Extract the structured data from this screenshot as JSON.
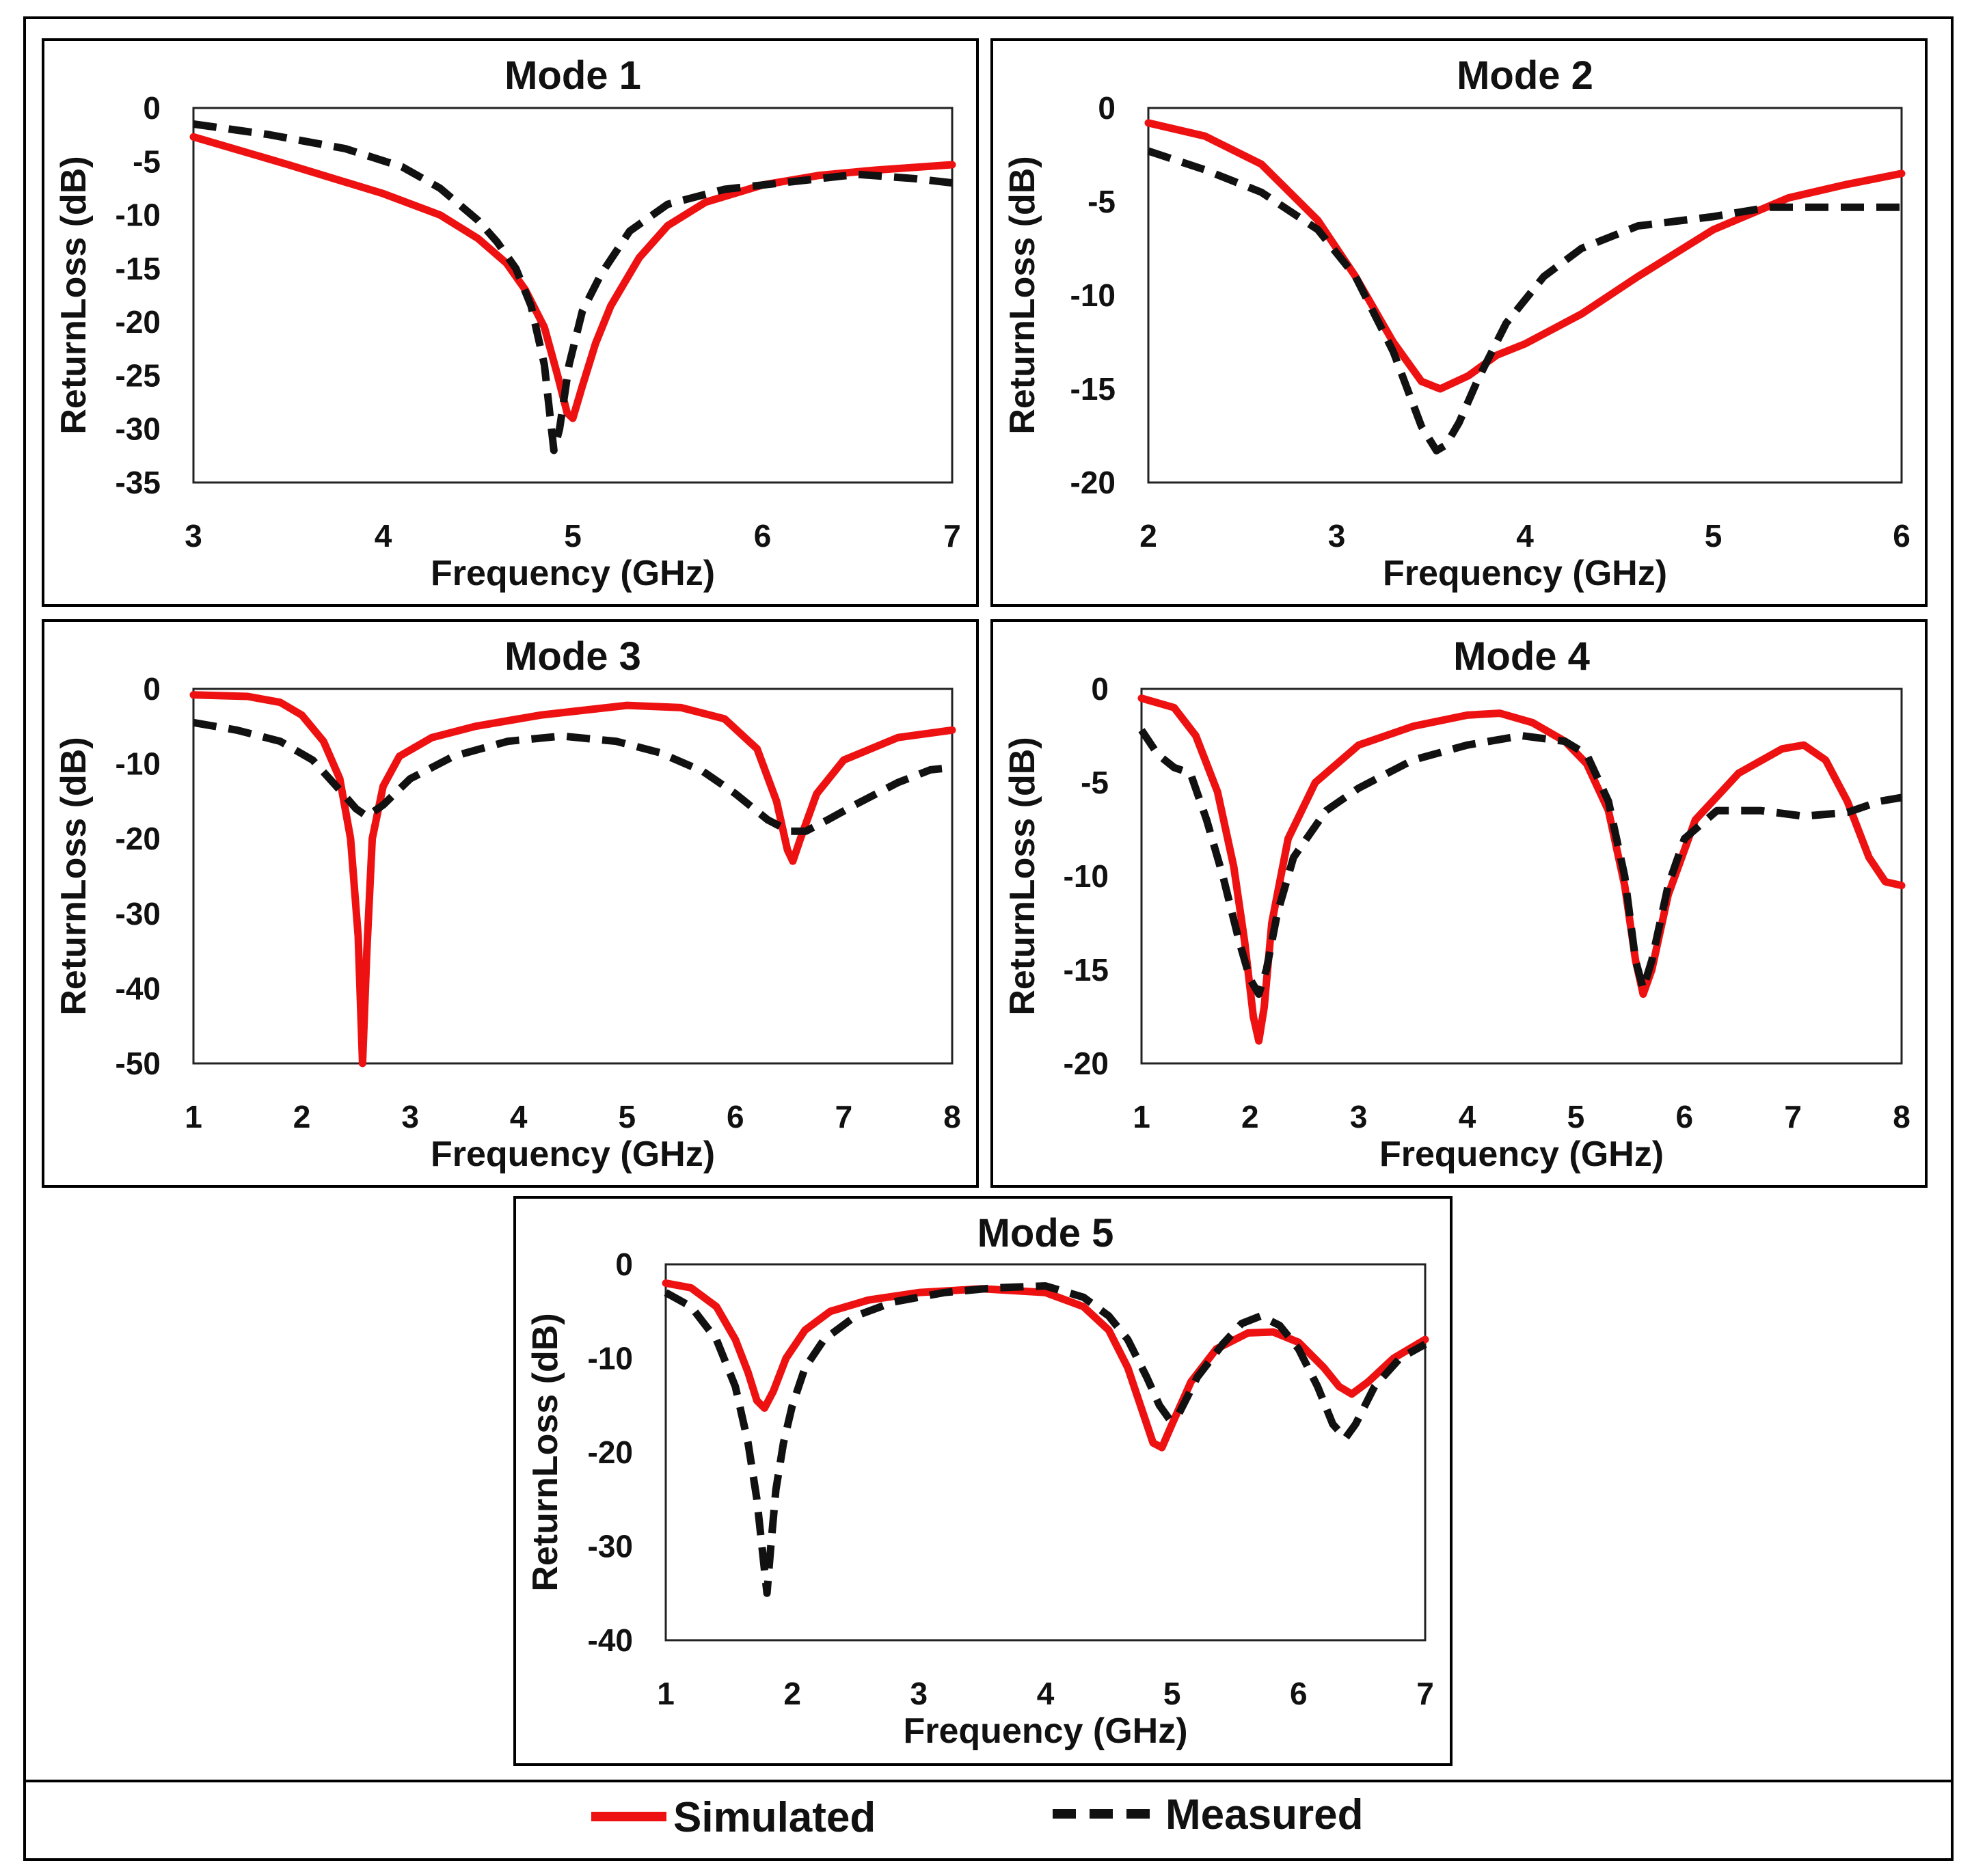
{
  "legend": {
    "simulated": "Simulated",
    "measured": "Measured"
  },
  "colors": {
    "simulated": "#ee1111",
    "measured": "#111111"
  },
  "chart_data": [
    {
      "type": "line",
      "title": "Mode 1",
      "xlabel": "Frequency (GHz)",
      "ylabel": "ReturnLoss (dB)",
      "xlim": [
        3,
        7
      ],
      "ylim": [
        -35,
        0
      ],
      "xticks": [
        3,
        4,
        5,
        6,
        7
      ],
      "yticks": [
        0,
        -5,
        -10,
        -15,
        -20,
        -25,
        -30,
        -35
      ],
      "grid": false,
      "series": [
        {
          "name": "Simulated",
          "x": [
            3,
            3.5,
            4,
            4.3,
            4.5,
            4.65,
            4.75,
            4.85,
            4.92,
            4.97,
            5.0,
            5.05,
            5.12,
            5.2,
            5.35,
            5.5,
            5.7,
            6.0,
            6.3,
            6.6,
            7.0
          ],
          "y": [
            -2.7,
            -5.3,
            -8.0,
            -10.0,
            -12.2,
            -14.5,
            -17.0,
            -20.5,
            -25.0,
            -28.5,
            -29.0,
            -26.0,
            -22.0,
            -18.5,
            -14.0,
            -11.0,
            -8.8,
            -7.2,
            -6.3,
            -5.8,
            -5.3
          ]
        },
        {
          "name": "Measured",
          "x": [
            3,
            3.4,
            3.8,
            4.1,
            4.3,
            4.5,
            4.6,
            4.7,
            4.78,
            4.85,
            4.9,
            4.93,
            4.98,
            5.05,
            5.15,
            5.3,
            5.5,
            5.8,
            6.1,
            6.5,
            6.8,
            7.0
          ],
          "y": [
            -1.5,
            -2.5,
            -3.8,
            -5.5,
            -7.5,
            -10.5,
            -12.5,
            -15.0,
            -18.5,
            -24.0,
            -32.0,
            -30.0,
            -24.0,
            -19.0,
            -15.5,
            -11.5,
            -9.0,
            -7.6,
            -7.0,
            -6.2,
            -6.6,
            -7.0
          ]
        }
      ]
    },
    {
      "type": "line",
      "title": "Mode 2",
      "xlabel": "Frequency (GHz)",
      "ylabel": "ReturnLoss (dB)",
      "xlim": [
        2,
        6
      ],
      "ylim": [
        -20,
        0
      ],
      "xticks": [
        2,
        3,
        4,
        5,
        6
      ],
      "yticks": [
        0,
        -5,
        -10,
        -15,
        -20
      ],
      "grid": false,
      "series": [
        {
          "name": "Simulated",
          "x": [
            2,
            2.3,
            2.6,
            2.9,
            3.1,
            3.3,
            3.45,
            3.55,
            3.7,
            3.85,
            4.0,
            4.3,
            4.6,
            5.0,
            5.4,
            5.7,
            6.0
          ],
          "y": [
            -0.8,
            -1.5,
            -3.0,
            -6.0,
            -9.0,
            -12.5,
            -14.6,
            -15.0,
            -14.3,
            -13.2,
            -12.6,
            -11.0,
            -9.0,
            -6.5,
            -4.8,
            -4.1,
            -3.5
          ]
        },
        {
          "name": "Measured",
          "x": [
            2,
            2.3,
            2.6,
            2.9,
            3.1,
            3.3,
            3.45,
            3.53,
            3.58,
            3.65,
            3.75,
            3.9,
            4.1,
            4.3,
            4.6,
            5.0,
            5.3,
            5.6,
            6.0
          ],
          "y": [
            -2.3,
            -3.3,
            -4.5,
            -6.5,
            -9.0,
            -13.0,
            -17.0,
            -18.3,
            -18.0,
            -16.8,
            -14.5,
            -11.5,
            -9.0,
            -7.5,
            -6.3,
            -5.8,
            -5.3,
            -5.3,
            -5.3
          ]
        }
      ]
    },
    {
      "type": "line",
      "title": "Mode 3",
      "xlabel": "Frequency (GHz)",
      "ylabel": "ReturnLoss (dB)",
      "xlim": [
        1,
        8
      ],
      "ylim": [
        -50,
        0
      ],
      "xticks": [
        1,
        2,
        3,
        4,
        5,
        6,
        7,
        8
      ],
      "yticks": [
        0,
        -10,
        -20,
        -30,
        -40,
        -50
      ],
      "grid": false,
      "series": [
        {
          "name": "Simulated",
          "x": [
            1,
            1.5,
            1.8,
            2.0,
            2.2,
            2.35,
            2.45,
            2.52,
            2.56,
            2.6,
            2.65,
            2.75,
            2.9,
            3.2,
            3.6,
            4.2,
            5.0,
            5.5,
            5.9,
            6.2,
            6.38,
            6.48,
            6.53,
            6.6,
            6.75,
            7.0,
            7.5,
            8.0
          ],
          "y": [
            -0.8,
            -1.0,
            -1.8,
            -3.5,
            -7.0,
            -12.0,
            -20.0,
            -33.0,
            -50.0,
            -35.0,
            -20.0,
            -13.0,
            -9.0,
            -6.5,
            -5.0,
            -3.5,
            -2.2,
            -2.5,
            -4.0,
            -8.0,
            -15.0,
            -21.5,
            -23.0,
            -20.0,
            -14.0,
            -9.5,
            -6.5,
            -5.5
          ]
        },
        {
          "name": "Measured",
          "x": [
            1,
            1.4,
            1.8,
            2.1,
            2.35,
            2.5,
            2.6,
            2.75,
            3.0,
            3.4,
            3.9,
            4.4,
            4.9,
            5.3,
            5.7,
            6.0,
            6.3,
            6.5,
            6.65,
            6.85,
            7.1,
            7.5,
            7.8,
            8.0
          ],
          "y": [
            -4.5,
            -5.5,
            -7.0,
            -9.5,
            -13.5,
            -16.0,
            -17.0,
            -15.5,
            -12.0,
            -9.0,
            -7.0,
            -6.3,
            -7.0,
            -8.5,
            -11.0,
            -14.0,
            -17.5,
            -19.0,
            -19.0,
            -17.5,
            -15.5,
            -12.5,
            -10.8,
            -10.5
          ]
        }
      ]
    },
    {
      "type": "line",
      "title": "Mode 4",
      "xlabel": "Frequency (GHz)",
      "ylabel": "ReturnLoss (dB)",
      "xlim": [
        1,
        8
      ],
      "ylim": [
        -20,
        0
      ],
      "xticks": [
        1,
        2,
        3,
        4,
        5,
        6,
        7,
        8
      ],
      "yticks": [
        0,
        -5,
        -10,
        -15,
        -20
      ],
      "grid": false,
      "series": [
        {
          "name": "Simulated",
          "x": [
            1,
            1.3,
            1.5,
            1.7,
            1.85,
            1.95,
            2.03,
            2.08,
            2.13,
            2.2,
            2.35,
            2.6,
            3.0,
            3.5,
            4.0,
            4.3,
            4.6,
            4.9,
            5.1,
            5.3,
            5.45,
            5.55,
            5.62,
            5.7,
            5.85,
            6.1,
            6.5,
            6.9,
            7.1,
            7.3,
            7.5,
            7.7,
            7.85,
            8.0
          ],
          "y": [
            -0.5,
            -1.0,
            -2.5,
            -5.5,
            -9.5,
            -13.5,
            -17.5,
            -18.8,
            -17.0,
            -12.5,
            -8.0,
            -5.0,
            -3.0,
            -2.0,
            -1.4,
            -1.3,
            -1.8,
            -2.8,
            -4.0,
            -6.5,
            -10.5,
            -14.5,
            -16.3,
            -15.0,
            -11.0,
            -7.0,
            -4.5,
            -3.2,
            -3.0,
            -3.8,
            -6.0,
            -9.0,
            -10.3,
            -10.5
          ]
        },
        {
          "name": "Measured",
          "x": [
            1,
            1.15,
            1.3,
            1.45,
            1.6,
            1.75,
            1.9,
            2.0,
            2.08,
            2.15,
            2.25,
            2.4,
            2.7,
            3.0,
            3.5,
            4.0,
            4.5,
            4.9,
            5.1,
            5.3,
            5.45,
            5.55,
            5.62,
            5.7,
            5.85,
            6.0,
            6.3,
            6.7,
            7.1,
            7.5,
            7.8,
            8.0
          ],
          "y": [
            -2.2,
            -3.5,
            -4.2,
            -4.5,
            -7.0,
            -10.0,
            -13.5,
            -15.5,
            -16.3,
            -15.0,
            -12.0,
            -9.0,
            -6.5,
            -5.3,
            -3.8,
            -3.0,
            -2.5,
            -2.8,
            -3.5,
            -6.0,
            -10.0,
            -14.5,
            -16.0,
            -14.5,
            -10.5,
            -8.0,
            -6.5,
            -6.5,
            -6.8,
            -6.6,
            -6.0,
            -5.8
          ]
        }
      ]
    },
    {
      "type": "line",
      "title": "Mode 5",
      "xlabel": "Frequency (GHz)",
      "ylabel": "ReturnLoss (dB)",
      "xlim": [
        1,
        7
      ],
      "ylim": [
        -40,
        0
      ],
      "xticks": [
        1,
        2,
        3,
        4,
        5,
        6,
        7
      ],
      "yticks": [
        0,
        -10,
        -20,
        -30,
        -40
      ],
      "grid": false,
      "series": [
        {
          "name": "Simulated",
          "x": [
            1,
            1.2,
            1.4,
            1.55,
            1.65,
            1.72,
            1.78,
            1.85,
            1.95,
            2.1,
            2.3,
            2.6,
            3.0,
            3.5,
            4.0,
            4.3,
            4.5,
            4.65,
            4.75,
            4.85,
            4.92,
            5.0,
            5.15,
            5.35,
            5.6,
            5.8,
            6.0,
            6.2,
            6.32,
            6.42,
            6.55,
            6.75,
            7.0
          ],
          "y": [
            -2.0,
            -2.5,
            -4.5,
            -8.0,
            -11.5,
            -14.5,
            -15.3,
            -13.5,
            -10.0,
            -7.0,
            -5.0,
            -3.8,
            -3.0,
            -2.6,
            -3.0,
            -4.5,
            -7.0,
            -11.0,
            -15.0,
            -19.0,
            -19.5,
            -17.0,
            -12.5,
            -9.0,
            -7.3,
            -7.2,
            -8.3,
            -11.0,
            -13.0,
            -13.8,
            -12.5,
            -10.0,
            -8.0
          ]
        },
        {
          "name": "Measured",
          "x": [
            1,
            1.2,
            1.4,
            1.55,
            1.65,
            1.72,
            1.76,
            1.8,
            1.83,
            1.87,
            1.93,
            2.0,
            2.1,
            2.25,
            2.5,
            2.8,
            3.2,
            3.6,
            4.0,
            4.3,
            4.5,
            4.65,
            4.8,
            4.9,
            4.98,
            5.05,
            5.2,
            5.4,
            5.55,
            5.7,
            5.85,
            6.0,
            6.15,
            6.27,
            6.37,
            6.45,
            6.6,
            6.8,
            7.0
          ],
          "y": [
            -3.0,
            -4.5,
            -8.0,
            -13.0,
            -19.0,
            -25.0,
            -30.0,
            -35.0,
            -30.0,
            -24.0,
            -19.0,
            -15.0,
            -11.0,
            -8.0,
            -5.5,
            -4.0,
            -3.0,
            -2.5,
            -2.3,
            -3.5,
            -5.5,
            -8.0,
            -12.0,
            -15.0,
            -16.5,
            -16.0,
            -12.0,
            -8.5,
            -6.3,
            -5.5,
            -6.5,
            -9.0,
            -13.0,
            -17.0,
            -18.5,
            -17.0,
            -13.0,
            -10.0,
            -8.5
          ]
        }
      ]
    }
  ]
}
